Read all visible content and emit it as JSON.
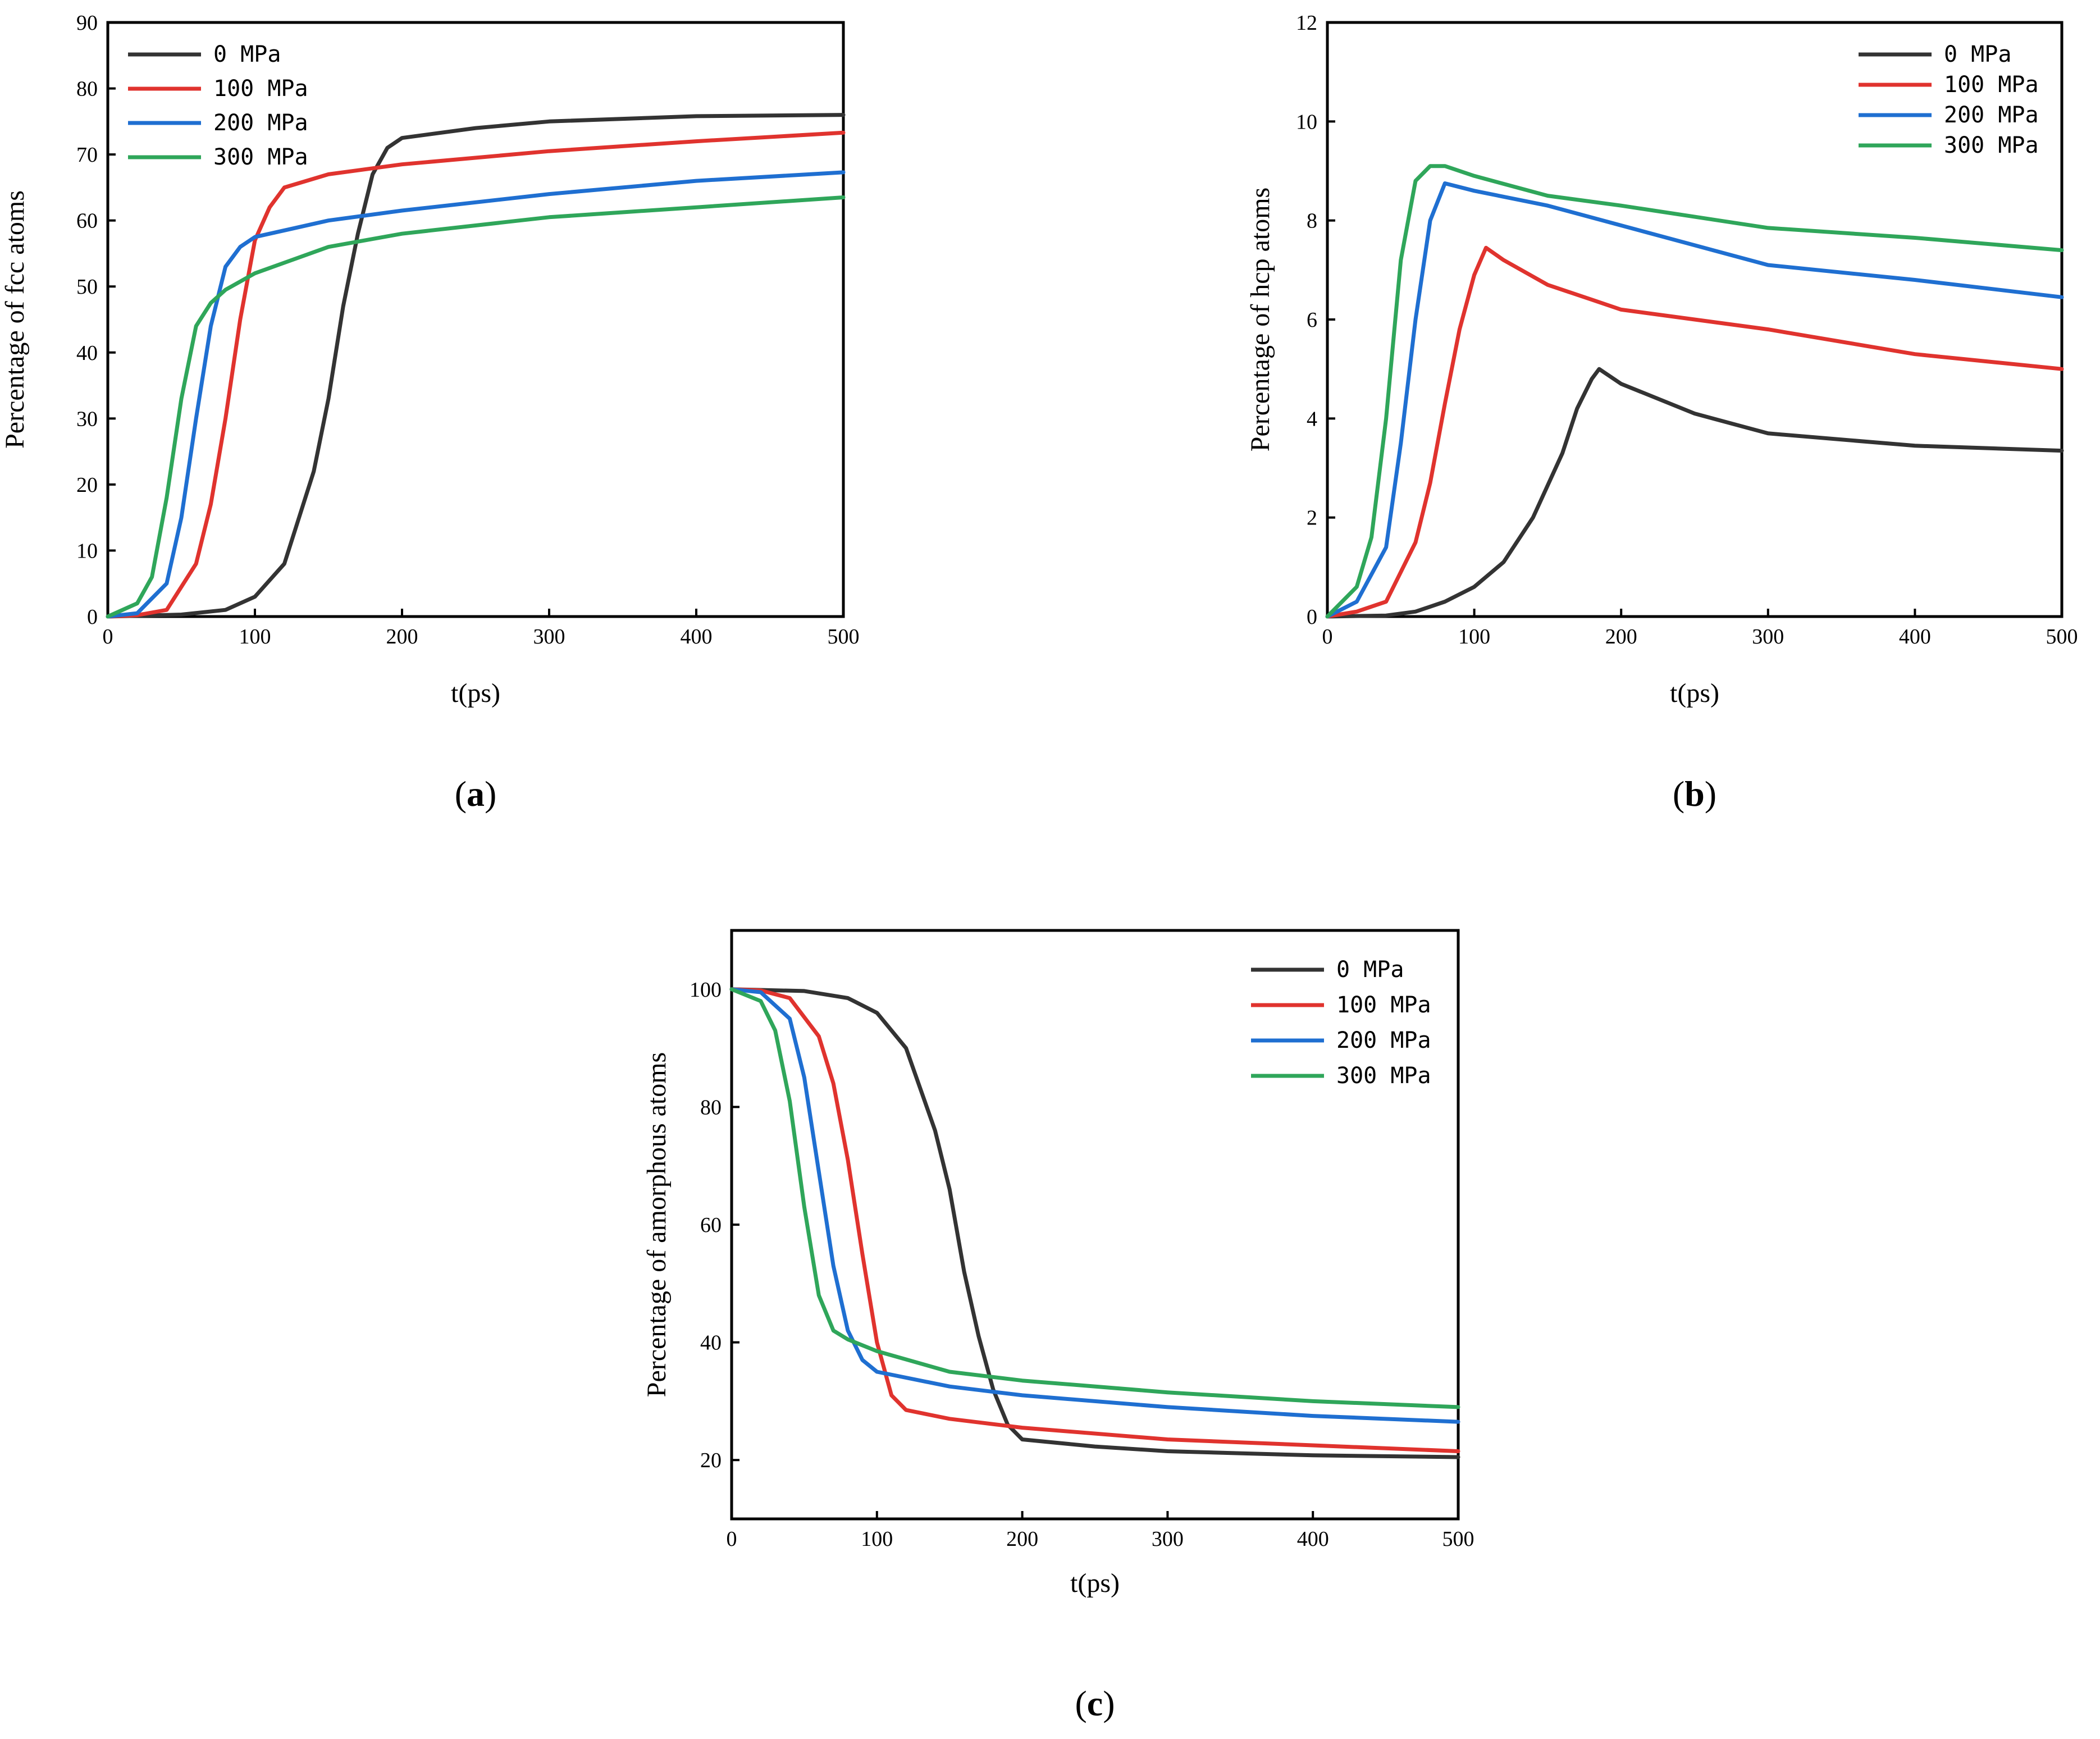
{
  "series_colors": {
    "0 MPa": "#333333",
    "100 MPa": "#e0332e",
    "200 MPa": "#1f6fd1",
    "300 MPa": "#2fa65a"
  },
  "chart_data": [
    {
      "type": "line",
      "panel_label": "a",
      "title": "",
      "xlabel": "t(ps)",
      "ylabel": "Percentage of fcc atoms",
      "xlim": [
        0,
        500
      ],
      "ylim": [
        0,
        90
      ],
      "xticks": [
        0,
        100,
        200,
        300,
        400,
        500
      ],
      "yticks": [
        0,
        10,
        20,
        30,
        40,
        50,
        60,
        70,
        80,
        90
      ],
      "legend_position": "top-left",
      "series": [
        {
          "name": "0 MPa",
          "x": [
            0,
            50,
            80,
            100,
            120,
            140,
            150,
            160,
            170,
            180,
            190,
            200,
            250,
            300,
            400,
            500
          ],
          "y": [
            0,
            0.3,
            1,
            3,
            8,
            22,
            33,
            47,
            58,
            67,
            71,
            72.5,
            74,
            75,
            75.8,
            76
          ]
        },
        {
          "name": "100 MPa",
          "x": [
            0,
            20,
            40,
            60,
            70,
            80,
            90,
            100,
            110,
            120,
            150,
            200,
            300,
            400,
            500
          ],
          "y": [
            0,
            0.2,
            1,
            8,
            17,
            30,
            45,
            57,
            62,
            65,
            67,
            68.5,
            70.5,
            72,
            73.3
          ]
        },
        {
          "name": "200 MPa",
          "x": [
            0,
            20,
            40,
            50,
            60,
            70,
            80,
            90,
            100,
            150,
            200,
            300,
            400,
            500
          ],
          "y": [
            0,
            0.5,
            5,
            15,
            30,
            44,
            53,
            56,
            57.5,
            60,
            61.5,
            64,
            66,
            67.3
          ]
        },
        {
          "name": "300 MPa",
          "x": [
            0,
            20,
            30,
            40,
            50,
            60,
            70,
            80,
            100,
            150,
            200,
            300,
            400,
            500
          ],
          "y": [
            0,
            2,
            6,
            18,
            33,
            44,
            47.5,
            49.5,
            52,
            56,
            58,
            60.5,
            62,
            63.5
          ]
        }
      ]
    },
    {
      "type": "line",
      "panel_label": "b",
      "title": "",
      "xlabel": "t(ps)",
      "ylabel": "Percentage of hcp atoms",
      "xlim": [
        0,
        500
      ],
      "ylim": [
        0,
        12
      ],
      "xticks": [
        0,
        100,
        200,
        300,
        400,
        500
      ],
      "yticks": [
        0,
        2,
        4,
        6,
        8,
        10,
        12
      ],
      "legend_position": "top-right",
      "series": [
        {
          "name": "0 MPa",
          "x": [
            0,
            40,
            60,
            80,
            100,
            120,
            140,
            160,
            170,
            180,
            185,
            200,
            250,
            300,
            400,
            500
          ],
          "y": [
            0,
            0.02,
            0.1,
            0.3,
            0.6,
            1.1,
            2.0,
            3.3,
            4.2,
            4.8,
            5.0,
            4.7,
            4.1,
            3.7,
            3.45,
            3.35
          ]
        },
        {
          "name": "100 MPa",
          "x": [
            0,
            20,
            40,
            60,
            70,
            80,
            90,
            100,
            108,
            120,
            150,
            180,
            200,
            300,
            400,
            500
          ],
          "y": [
            0,
            0.1,
            0.3,
            1.5,
            2.7,
            4.3,
            5.8,
            6.9,
            7.45,
            7.2,
            6.7,
            6.4,
            6.2,
            5.8,
            5.3,
            5.0
          ]
        },
        {
          "name": "200 MPa",
          "x": [
            0,
            20,
            40,
            50,
            60,
            70,
            80,
            100,
            150,
            200,
            250,
            300,
            400,
            500
          ],
          "y": [
            0,
            0.3,
            1.4,
            3.5,
            6.0,
            8.0,
            8.75,
            8.6,
            8.3,
            7.9,
            7.5,
            7.1,
            6.8,
            6.45
          ]
        },
        {
          "name": "300 MPa",
          "x": [
            0,
            20,
            30,
            40,
            50,
            60,
            70,
            80,
            100,
            150,
            200,
            300,
            400,
            500
          ],
          "y": [
            0,
            0.6,
            1.6,
            4.0,
            7.2,
            8.8,
            9.1,
            9.1,
            8.9,
            8.5,
            8.3,
            7.85,
            7.65,
            7.4
          ]
        }
      ]
    },
    {
      "type": "line",
      "panel_label": "c",
      "title": "",
      "xlabel": "t(ps)",
      "ylabel": "Percentage of amorphous atoms",
      "xlim": [
        0,
        500
      ],
      "ylim": [
        10,
        110
      ],
      "xticks": [
        0,
        100,
        200,
        300,
        400,
        500
      ],
      "yticks": [
        20,
        40,
        60,
        80,
        100
      ],
      "legend_position": "top-right",
      "series": [
        {
          "name": "0 MPa",
          "x": [
            0,
            50,
            80,
            100,
            120,
            140,
            150,
            160,
            170,
            180,
            190,
            200,
            250,
            300,
            400,
            500
          ],
          "y": [
            100,
            99.7,
            98.5,
            96,
            90,
            76,
            66,
            52,
            41,
            32,
            26,
            23.5,
            22.3,
            21.5,
            20.8,
            20.5
          ]
        },
        {
          "name": "100 MPa",
          "x": [
            0,
            20,
            40,
            60,
            70,
            80,
            90,
            100,
            110,
            120,
            150,
            200,
            300,
            400,
            500
          ],
          "y": [
            100,
            99.8,
            98.5,
            92,
            84,
            71,
            55,
            40,
            31,
            28.5,
            27,
            25.5,
            23.5,
            22.5,
            21.5
          ]
        },
        {
          "name": "200 MPa",
          "x": [
            0,
            20,
            40,
            50,
            60,
            70,
            80,
            90,
            100,
            150,
            200,
            300,
            400,
            500
          ],
          "y": [
            100,
            99.5,
            95,
            85,
            69,
            53,
            42,
            37,
            35,
            32.5,
            31,
            29,
            27.5,
            26.5
          ]
        },
        {
          "name": "300 MPa",
          "x": [
            0,
            20,
            30,
            40,
            50,
            60,
            70,
            80,
            100,
            150,
            200,
            300,
            400,
            500
          ],
          "y": [
            100,
            98,
            93,
            81,
            63,
            48,
            42,
            40.5,
            38.5,
            35,
            33.5,
            31.5,
            30,
            29
          ]
        }
      ]
    }
  ]
}
